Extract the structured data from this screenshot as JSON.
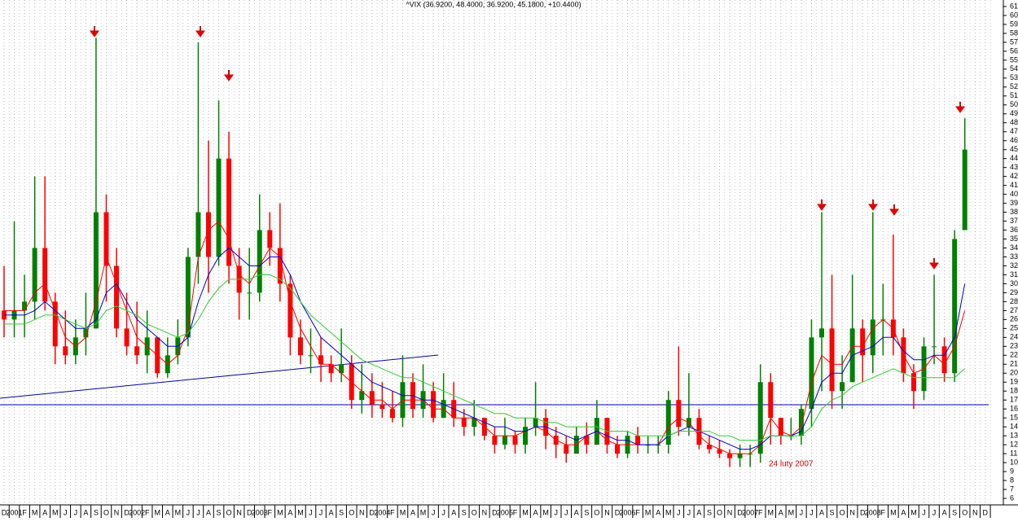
{
  "chart_data": {
    "type": "candlestick",
    "title": "^VIX (36.9200, 48.4000, 36.9200, 45.1800, +10.4400)",
    "annotation": "24 luty 2007",
    "categories": [
      "D",
      "2001",
      "F",
      "M",
      "A",
      "M",
      "J",
      "J",
      "A",
      "S",
      "O",
      "N",
      "D",
      "2002",
      "F",
      "M",
      "A",
      "M",
      "J",
      "J",
      "A",
      "S",
      "O",
      "N",
      "D",
      "2003",
      "F",
      "M",
      "A",
      "M",
      "J",
      "J",
      "A",
      "S",
      "O",
      "N",
      "D",
      "2004",
      "F",
      "M",
      "A",
      "M",
      "J",
      "J",
      "A",
      "S",
      "O",
      "N",
      "D",
      "2005",
      "F",
      "M",
      "A",
      "M",
      "J",
      "J",
      "A",
      "S",
      "O",
      "N",
      "D",
      "2006",
      "F",
      "M",
      "A",
      "M",
      "J",
      "J",
      "A",
      "S",
      "O",
      "N",
      "D",
      "2007",
      "F",
      "M",
      "A",
      "M",
      "J",
      "J",
      "A",
      "S",
      "O",
      "N",
      "D",
      "2008",
      "F",
      "M",
      "A",
      "M",
      "J",
      "J",
      "A",
      "S",
      "O",
      "N",
      "D"
    ],
    "open": [
      27,
      26,
      27,
      28,
      34,
      28,
      23,
      22,
      24,
      25,
      38,
      32,
      25,
      23,
      22,
      24,
      20,
      22,
      24,
      33,
      38,
      33,
      44,
      32,
      29,
      29,
      36,
      34,
      30,
      24,
      22,
      22,
      21,
      20,
      21,
      17,
      18,
      16.5,
      16,
      15,
      19,
      16,
      18,
      15,
      17,
      15,
      14,
      15,
      13,
      12,
      13,
      12,
      14,
      15,
      13,
      12,
      11,
      13,
      12,
      15,
      12,
      11,
      13,
      12,
      12,
      12,
      17,
      14,
      15,
      12,
      11.5,
      11,
      10.5,
      11,
      11,
      19,
      15,
      13,
      13,
      16,
      24,
      25,
      18,
      19,
      25,
      22,
      26,
      26,
      24,
      20,
      18,
      23,
      23,
      20,
      36,
      null,
      null
    ],
    "high": [
      32,
      37,
      31,
      42,
      42,
      29,
      27,
      26,
      29,
      57.5,
      40,
      34,
      29,
      28,
      27,
      24,
      24,
      26,
      34,
      57,
      46,
      50.5,
      47,
      34,
      34,
      40,
      38,
      39,
      31,
      26,
      25,
      24,
      22,
      25,
      22,
      21,
      20,
      19,
      18,
      22,
      20,
      21,
      19,
      20,
      19,
      16,
      17,
      15,
      14,
      15,
      13.5,
      15,
      19,
      16,
      14,
      13,
      14,
      14.5,
      17,
      15,
      13,
      13.5,
      14,
      13,
      13,
      18,
      23,
      20,
      16,
      13,
      12.5,
      11.5,
      12,
      12,
      21,
      20,
      15,
      15,
      16.5,
      26,
      38,
      31,
      22,
      31,
      26,
      38,
      30,
      35.5,
      25,
      21,
      24,
      31,
      24,
      36,
      48.5,
      null,
      null
    ],
    "low": [
      24,
      24,
      24,
      26,
      27,
      21,
      21,
      21,
      22,
      25,
      28,
      24,
      22,
      21,
      20,
      19.5,
      19.5,
      21,
      23,
      30,
      29,
      32,
      30,
      26,
      26,
      28,
      32,
      28,
      22,
      21,
      20,
      19,
      19,
      19,
      16,
      15.5,
      15,
      15,
      14.5,
      14,
      15,
      15,
      14.5,
      15,
      14,
      13,
      13,
      12.5,
      11,
      11.5,
      11,
      11,
      13,
      11.5,
      10.5,
      10,
      11,
      11,
      12,
      11,
      10.5,
      10.5,
      11,
      11,
      11,
      11,
      13,
      13,
      11.5,
      11,
      10.5,
      9.5,
      9.5,
      9.5,
      10,
      12,
      12,
      12.5,
      12,
      14,
      18,
      16,
      16,
      19,
      19,
      20,
      22,
      22,
      19,
      16,
      17,
      21,
      19,
      19,
      36,
      null,
      null
    ],
    "close": [
      26,
      27,
      28,
      34,
      28,
      23,
      22,
      24,
      25,
      38,
      32,
      25,
      23,
      22,
      24,
      20,
      22,
      24,
      33,
      38,
      33,
      44,
      32,
      29,
      29,
      36,
      34,
      30,
      24,
      22,
      22,
      21,
      20,
      21,
      17,
      18,
      16.5,
      16,
      15,
      19,
      16,
      18,
      15,
      17,
      15,
      14,
      15,
      13,
      12,
      13,
      12,
      14,
      15,
      13,
      12,
      11,
      13,
      12,
      15,
      12,
      11,
      13,
      12,
      12,
      12,
      17,
      14,
      15,
      12,
      11.5,
      11,
      10.5,
      11,
      11,
      19,
      15,
      13,
      13,
      16,
      24,
      25,
      18,
      19,
      25,
      22,
      26,
      26,
      24,
      20,
      18,
      23,
      23,
      20,
      35,
      45,
      null,
      null
    ],
    "series": [
      {
        "color": "#ff0000",
        "values": [
          27,
          27,
          27,
          29,
          30,
          27,
          24,
          23,
          24,
          28,
          33,
          30,
          27,
          24,
          23,
          22,
          21,
          22,
          25,
          33,
          36,
          37,
          35,
          31,
          30,
          32,
          34,
          33,
          28,
          25,
          23,
          21,
          21,
          20,
          19,
          18,
          17,
          17,
          16,
          17,
          17,
          17,
          16,
          16,
          15,
          15,
          15,
          14,
          13,
          13,
          13,
          13.5,
          14,
          13.5,
          12.5,
          12,
          12,
          13,
          13.5,
          12.5,
          12,
          12,
          12,
          12,
          12,
          14,
          15,
          14.5,
          13,
          12,
          11.5,
          11,
          11,
          11,
          12,
          15,
          13.5,
          13,
          14,
          19,
          22,
          21,
          21,
          23,
          23,
          25,
          26,
          25,
          22,
          20,
          20.5,
          22,
          21,
          23,
          27,
          null,
          null
        ]
      },
      {
        "color": "#0000cc",
        "values": [
          26.5,
          26.5,
          26.5,
          27,
          28,
          27,
          26,
          25,
          25,
          26,
          29,
          30,
          28,
          26,
          25,
          24,
          23,
          23,
          24,
          28,
          31,
          33,
          34,
          33,
          32,
          32,
          33,
          33,
          31,
          28,
          26,
          24,
          23,
          22,
          21,
          20,
          19,
          18.5,
          18,
          17.5,
          17.5,
          17,
          17,
          16.5,
          16,
          15.5,
          15,
          14.5,
          14,
          14,
          13.5,
          13.5,
          14,
          14,
          13.5,
          13,
          12.5,
          13,
          13.5,
          13,
          12.5,
          12.5,
          12,
          12,
          12,
          13,
          13.5,
          14,
          13.5,
          13,
          12.5,
          12,
          11.5,
          11.5,
          12,
          13,
          13,
          13,
          13.5,
          16,
          19,
          20,
          20,
          22,
          22.5,
          23,
          24,
          24,
          22.5,
          21.5,
          21.5,
          22,
          22,
          24,
          30,
          null,
          null
        ]
      },
      {
        "color": "#33cc33",
        "values": [
          25.5,
          25.5,
          25.5,
          26,
          26.5,
          26.5,
          26,
          25.5,
          25,
          25.5,
          27,
          27.5,
          27,
          26.5,
          25.5,
          25,
          24.5,
          24,
          24.5,
          26,
          28,
          29.5,
          30.5,
          30.5,
          30.5,
          31,
          31,
          30.5,
          29.5,
          28,
          26.5,
          25.5,
          24.5,
          23.5,
          22.5,
          21.5,
          21,
          20.5,
          20,
          19.5,
          19.5,
          19,
          18.5,
          18,
          17.5,
          17,
          16.5,
          16,
          15.5,
          15.5,
          15,
          15,
          15,
          14.5,
          14.5,
          14,
          14,
          14,
          14,
          13.5,
          13.5,
          13.5,
          13,
          13,
          13,
          13,
          13.5,
          13.5,
          13.5,
          13.5,
          13,
          13,
          12.5,
          12.5,
          12.5,
          13,
          13,
          13,
          13,
          14,
          16,
          17,
          17.5,
          18.5,
          19,
          19.5,
          20,
          20.5,
          20,
          19.5,
          19.5,
          19.5,
          19.5,
          19.5,
          20.5,
          null,
          null
        ]
      }
    ],
    "up_color": "#008000",
    "down_color": "#ff0000",
    "ylim": [
      6,
      61.7
    ],
    "yticks": [
      6,
      7,
      8,
      9,
      10,
      11,
      12,
      13,
      14,
      15,
      16,
      17,
      18,
      19,
      20,
      21,
      22,
      23,
      24,
      25,
      26,
      27,
      28,
      29,
      30,
      31,
      32,
      33,
      34,
      35,
      36,
      37,
      38,
      39,
      40,
      41,
      42,
      43,
      44,
      45,
      46,
      47,
      48,
      49,
      50,
      51,
      52,
      53,
      54,
      55,
      56,
      57,
      58,
      59,
      60,
      61
    ]
  }
}
